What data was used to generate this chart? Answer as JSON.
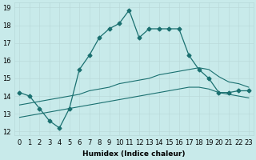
{
  "xlabel": "Humidex (Indice chaleur)",
  "ylabel": "",
  "background_color": "#c8eaea",
  "grid_color": "#b8d8d8",
  "line_color": "#1a7070",
  "xlim": [
    -0.5,
    23.5
  ],
  "ylim": [
    11.8,
    19.3
  ],
  "yticks": [
    12,
    13,
    14,
    15,
    16,
    17,
    18,
    19
  ],
  "xticks": [
    0,
    1,
    2,
    3,
    4,
    5,
    6,
    7,
    8,
    9,
    10,
    11,
    12,
    13,
    14,
    15,
    16,
    17,
    18,
    19,
    20,
    21,
    22,
    23
  ],
  "line1_x": [
    0,
    1,
    2,
    3,
    4,
    5,
    6,
    7,
    8,
    9,
    10,
    11,
    12,
    13,
    14,
    15,
    16,
    17,
    18,
    19,
    20,
    21,
    22,
    23
  ],
  "line1_y": [
    14.2,
    14.0,
    13.3,
    12.6,
    12.2,
    13.3,
    15.5,
    16.3,
    17.3,
    17.8,
    18.1,
    18.85,
    17.3,
    17.8,
    17.8,
    17.8,
    17.8,
    16.3,
    15.5,
    15.0,
    14.2,
    14.2,
    14.3,
    14.3
  ],
  "line2_x": [
    0,
    1,
    2,
    3,
    4,
    5,
    6,
    7,
    8,
    9,
    10,
    11,
    12,
    13,
    14,
    15,
    16,
    17,
    18,
    19,
    20,
    21,
    22,
    23
  ],
  "line2_y": [
    13.5,
    13.6,
    13.7,
    13.8,
    13.9,
    14.0,
    14.1,
    14.3,
    14.4,
    14.5,
    14.7,
    14.8,
    14.9,
    15.0,
    15.2,
    15.3,
    15.4,
    15.5,
    15.6,
    15.5,
    15.1,
    14.8,
    14.7,
    14.5
  ],
  "line3_x": [
    0,
    1,
    2,
    3,
    4,
    5,
    6,
    7,
    8,
    9,
    10,
    11,
    12,
    13,
    14,
    15,
    16,
    17,
    18,
    19,
    20,
    21,
    22,
    23
  ],
  "line3_y": [
    12.8,
    12.9,
    13.0,
    13.1,
    13.2,
    13.3,
    13.4,
    13.5,
    13.6,
    13.7,
    13.8,
    13.9,
    14.0,
    14.1,
    14.2,
    14.3,
    14.4,
    14.5,
    14.5,
    14.4,
    14.2,
    14.1,
    14.0,
    13.9
  ],
  "title_fontsize": 7,
  "axis_fontsize": 6.5,
  "tick_fontsize": 6
}
